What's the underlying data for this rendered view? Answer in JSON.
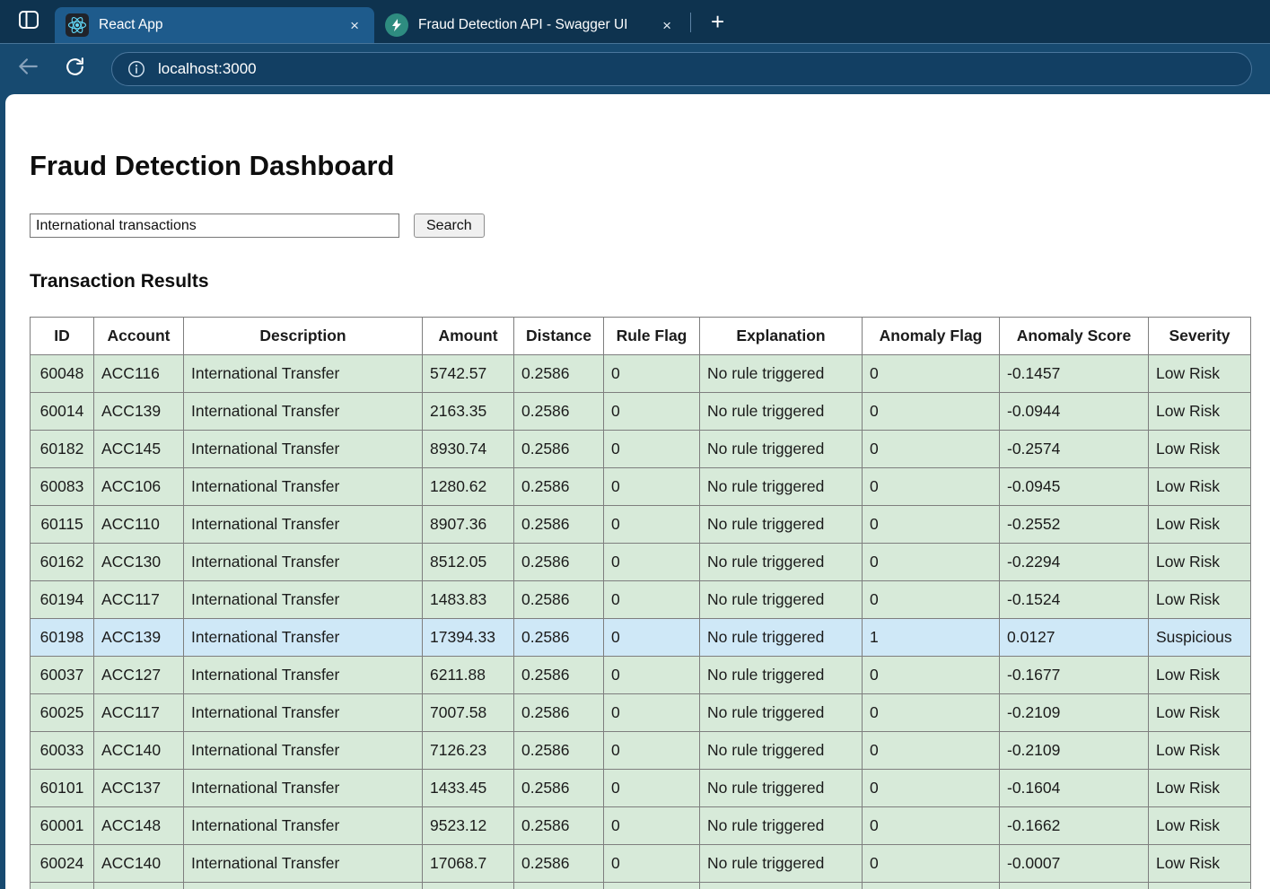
{
  "browser": {
    "tabs": [
      {
        "title": "React App",
        "favicon": "react-logo"
      },
      {
        "title": "Fraud Detection API - Swagger UI",
        "favicon": "fastapi-logo"
      }
    ],
    "icons": {
      "close": "×",
      "new_tab": "+"
    },
    "address": {
      "url": "localhost:3000"
    }
  },
  "page": {
    "title": "Fraud Detection Dashboard",
    "search": {
      "value": "International transactions",
      "button_label": "Search"
    },
    "results_heading": "Transaction Results",
    "table": {
      "columns": [
        "ID",
        "Account",
        "Description",
        "Amount",
        "Distance",
        "Rule Flag",
        "Explanation",
        "Anomaly Flag",
        "Anomaly Score",
        "Severity"
      ],
      "rows": [
        {
          "status": "low",
          "cells": [
            "60048",
            "ACC116",
            "International Transfer",
            "5742.57",
            "0.2586",
            "0",
            "No rule triggered",
            "0",
            "-0.1457",
            "Low Risk"
          ]
        },
        {
          "status": "low",
          "cells": [
            "60014",
            "ACC139",
            "International Transfer",
            "2163.35",
            "0.2586",
            "0",
            "No rule triggered",
            "0",
            "-0.0944",
            "Low Risk"
          ]
        },
        {
          "status": "low",
          "cells": [
            "60182",
            "ACC145",
            "International Transfer",
            "8930.74",
            "0.2586",
            "0",
            "No rule triggered",
            "0",
            "-0.2574",
            "Low Risk"
          ]
        },
        {
          "status": "low",
          "cells": [
            "60083",
            "ACC106",
            "International Transfer",
            "1280.62",
            "0.2586",
            "0",
            "No rule triggered",
            "0",
            "-0.0945",
            "Low Risk"
          ]
        },
        {
          "status": "low",
          "cells": [
            "60115",
            "ACC110",
            "International Transfer",
            "8907.36",
            "0.2586",
            "0",
            "No rule triggered",
            "0",
            "-0.2552",
            "Low Risk"
          ]
        },
        {
          "status": "low",
          "cells": [
            "60162",
            "ACC130",
            "International Transfer",
            "8512.05",
            "0.2586",
            "0",
            "No rule triggered",
            "0",
            "-0.2294",
            "Low Risk"
          ]
        },
        {
          "status": "low",
          "cells": [
            "60194",
            "ACC117",
            "International Transfer",
            "1483.83",
            "0.2586",
            "0",
            "No rule triggered",
            "0",
            "-0.1524",
            "Low Risk"
          ]
        },
        {
          "status": "suspicious",
          "cells": [
            "60198",
            "ACC139",
            "International Transfer",
            "17394.33",
            "0.2586",
            "0",
            "No rule triggered",
            "1",
            "0.0127",
            "Suspicious"
          ]
        },
        {
          "status": "low",
          "cells": [
            "60037",
            "ACC127",
            "International Transfer",
            "6211.88",
            "0.2586",
            "0",
            "No rule triggered",
            "0",
            "-0.1677",
            "Low Risk"
          ]
        },
        {
          "status": "low",
          "cells": [
            "60025",
            "ACC117",
            "International Transfer",
            "7007.58",
            "0.2586",
            "0",
            "No rule triggered",
            "0",
            "-0.2109",
            "Low Risk"
          ]
        },
        {
          "status": "low",
          "cells": [
            "60033",
            "ACC140",
            "International Transfer",
            "7126.23",
            "0.2586",
            "0",
            "No rule triggered",
            "0",
            "-0.2109",
            "Low Risk"
          ]
        },
        {
          "status": "low",
          "cells": [
            "60101",
            "ACC137",
            "International Transfer",
            "1433.45",
            "0.2586",
            "0",
            "No rule triggered",
            "0",
            "-0.1604",
            "Low Risk"
          ]
        },
        {
          "status": "low",
          "cells": [
            "60001",
            "ACC148",
            "International Transfer",
            "9523.12",
            "0.2586",
            "0",
            "No rule triggered",
            "0",
            "-0.1662",
            "Low Risk"
          ]
        },
        {
          "status": "low",
          "cells": [
            "60024",
            "ACC140",
            "International Transfer",
            "17068.7",
            "0.2586",
            "0",
            "No rule triggered",
            "0",
            "-0.0007",
            "Low Risk"
          ]
        }
      ],
      "partial_next_row_visible": true
    }
  },
  "colors": {
    "tab_strip_bg": "#0e334f",
    "active_tab_bg": "#1e5b8c",
    "toolbar_bg": "#174a70",
    "url_pill_bg": "#123f63",
    "row_low_risk_bg": "#d7ead9",
    "row_suspicious_bg": "#cfe8f7",
    "react_accent": "#61dafb",
    "fastapi_accent": "#2e8c80"
  }
}
